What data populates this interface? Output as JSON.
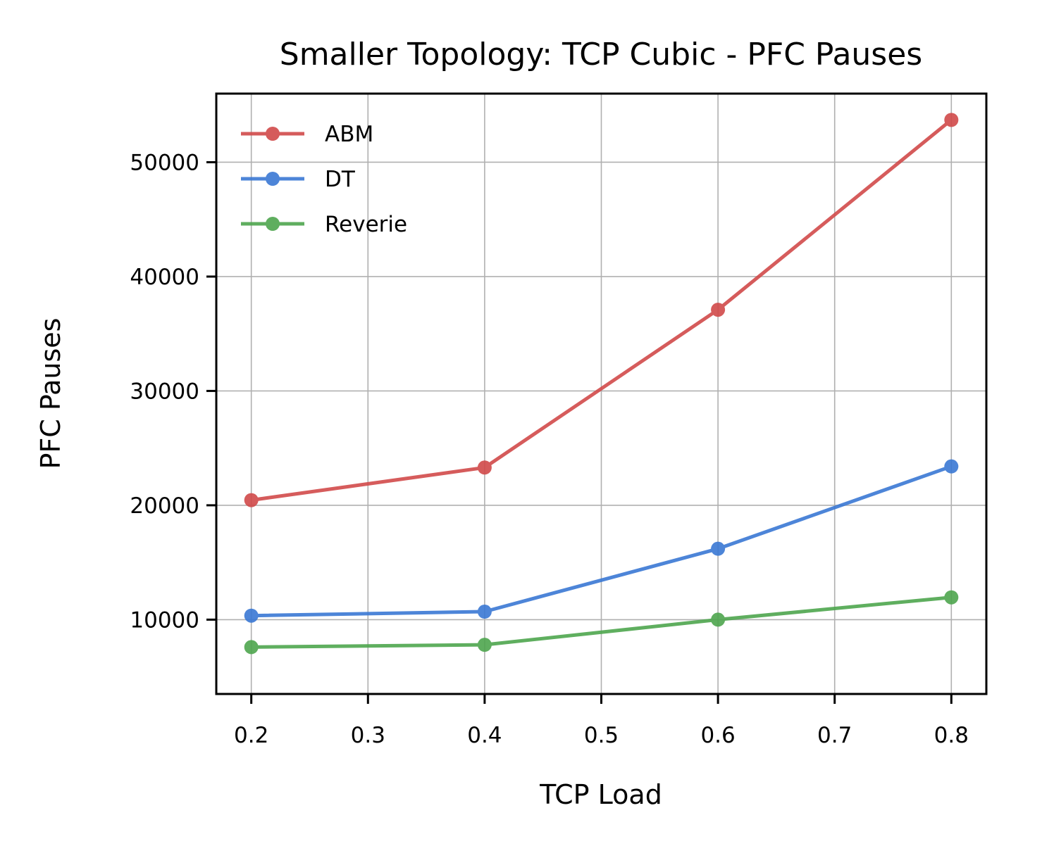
{
  "chart_data": {
    "type": "line",
    "title": "Smaller Topology: TCP Cubic - PFC Pauses",
    "xlabel": "TCP Load",
    "ylabel": "PFC Pauses",
    "x": [
      0.2,
      0.4,
      0.6,
      0.8
    ],
    "xticks": [
      "0.2",
      "0.3",
      "0.4",
      "0.5",
      "0.6",
      "0.7",
      "0.8"
    ],
    "yticks": [
      "10000",
      "20000",
      "30000",
      "40000",
      "50000"
    ],
    "xlim": [
      0.17,
      0.83
    ],
    "ylim": [
      3500,
      56000
    ],
    "grid": true,
    "legend_position": "upper-left",
    "series": [
      {
        "name": "ABM",
        "color": "#d14a4a",
        "values": [
          20450,
          23300,
          37100,
          53700
        ]
      },
      {
        "name": "DT",
        "color": "#3a78d4",
        "values": [
          10350,
          10700,
          16200,
          23400
        ]
      },
      {
        "name": "Reverie",
        "color": "#4ea64e",
        "values": [
          7600,
          7800,
          10000,
          11950
        ]
      }
    ]
  }
}
